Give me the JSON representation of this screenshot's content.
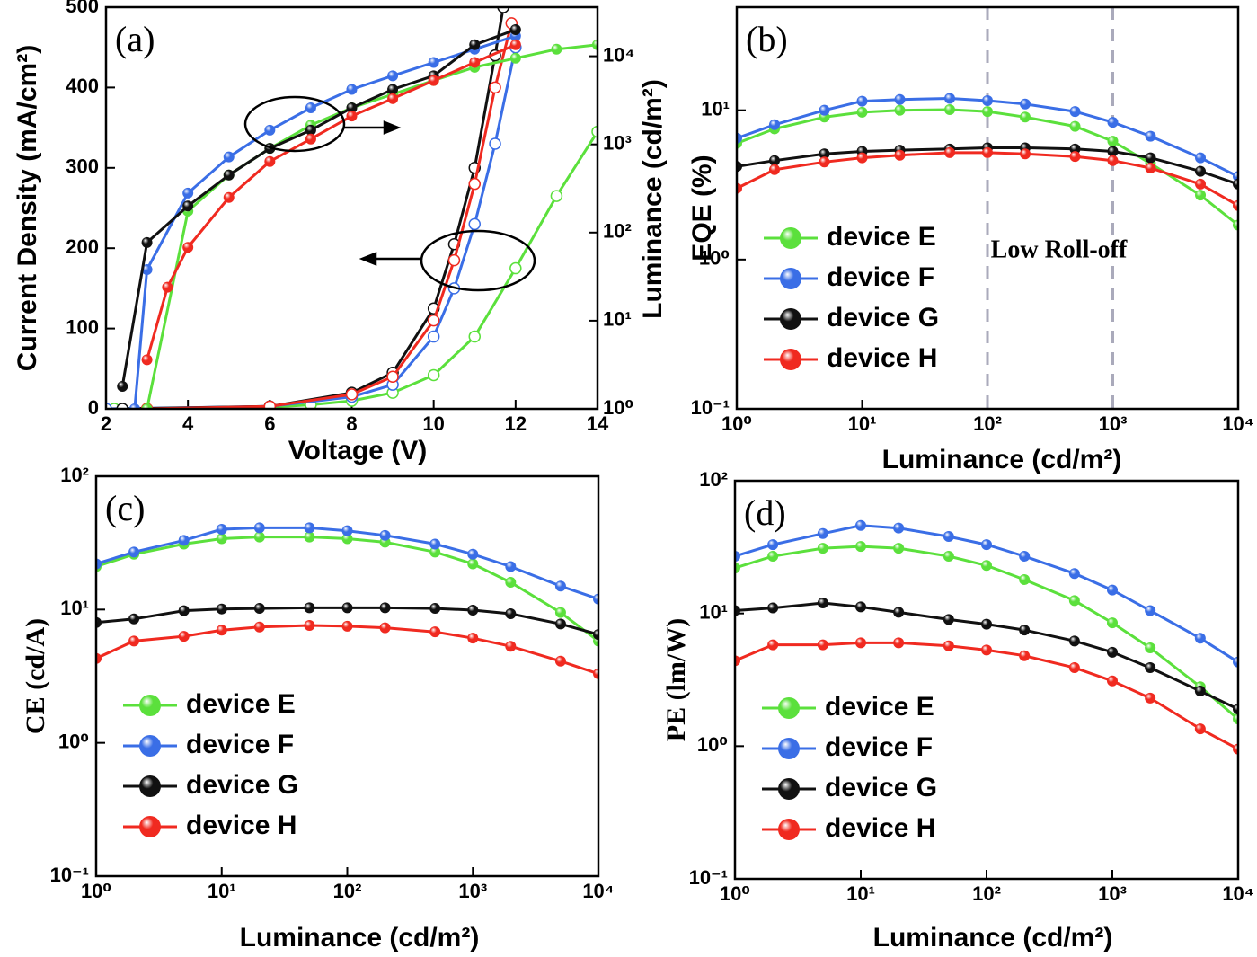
{
  "chart_data": [
    {
      "type": "line",
      "label": "(a)",
      "xlabel": "Voltage (V)",
      "ylabel": "Current Density (mA/cm²)",
      "y2label": "Luminance (cd/m²)",
      "xlim": [
        2,
        14
      ],
      "xticks": [
        2,
        4,
        6,
        8,
        10,
        12,
        14
      ],
      "ylim": [
        0,
        500
      ],
      "yticks": [
        0,
        100,
        200,
        300,
        400,
        500
      ],
      "y2lim": [
        1,
        36000
      ],
      "y2scale": "log",
      "y2ticks": [
        {
          "value": 1,
          "label": "10⁰"
        },
        {
          "value": 10,
          "label": "10¹"
        },
        {
          "value": 100,
          "label": "10²"
        },
        {
          "value": 1000,
          "label": "10³"
        },
        {
          "value": 10000,
          "label": "10⁴"
        }
      ],
      "series": [
        {
          "color": "#5be03c",
          "marker": "open",
          "x": [
            2.2,
            6,
            7,
            8,
            9,
            10,
            11,
            12,
            13,
            14
          ],
          "values": [
            0,
            2,
            5,
            10,
            20,
            42,
            90,
            175,
            265,
            345
          ]
        },
        {
          "color": "#3a6ee6",
          "marker": "open",
          "x": [
            2,
            6,
            8,
            9,
            10,
            10.5,
            11,
            11.5,
            12
          ],
          "values": [
            0,
            3,
            15,
            30,
            90,
            150,
            230,
            330,
            450
          ]
        },
        {
          "color": "#111111",
          "marker": "open",
          "x": [
            2.4,
            6,
            8,
            9,
            10,
            10.5,
            11,
            11.5,
            11.7
          ],
          "values": [
            0,
            3,
            20,
            45,
            125,
            205,
            300,
            440,
            500
          ]
        },
        {
          "color": "#f02a20",
          "marker": "open",
          "x": [
            3,
            6,
            8,
            9,
            10,
            10.5,
            11,
            11.5,
            11.9
          ],
          "values": [
            0,
            3,
            18,
            40,
            110,
            185,
            280,
            400,
            480
          ]
        },
        {
          "color": "#5be03c",
          "axis": "y2",
          "x": [
            3,
            4,
            5,
            6,
            7,
            8,
            9,
            10,
            11,
            12,
            13,
            14
          ],
          "values": [
            1,
            175,
            450,
            900,
            1650,
            2600,
            3700,
            5300,
            7500,
            9500,
            12000,
            13500
          ]
        },
        {
          "color": "#3a6ee6",
          "axis": "y2",
          "x": [
            2.7,
            3,
            4,
            5,
            6,
            7,
            8,
            9,
            10,
            11,
            12
          ],
          "values": [
            1,
            38,
            280,
            720,
            1450,
            2600,
            4200,
            6000,
            8500,
            12000,
            17000
          ]
        },
        {
          "color": "#111111",
          "axis": "y2",
          "x": [
            2.4,
            3,
            4,
            5,
            6,
            7,
            8,
            9,
            10,
            11,
            12
          ],
          "values": [
            1.8,
            77,
            200,
            450,
            900,
            1450,
            2600,
            4200,
            6000,
            13500,
            20000
          ]
        },
        {
          "color": "#f02a20",
          "axis": "y2",
          "x": [
            3,
            3.5,
            4,
            5,
            6,
            7,
            8,
            9,
            10,
            11,
            12
          ],
          "values": [
            3.6,
            24,
            68,
            250,
            640,
            1150,
            2100,
            3300,
            5300,
            8500,
            13500
          ]
        }
      ]
    },
    {
      "type": "line",
      "label": "(b)",
      "xlabel": "Luminance (cd/m²)",
      "ylabel": "EQE (%)",
      "annotations": [
        "Low Roll-off"
      ],
      "vlines": [
        100,
        1000
      ],
      "legend": "lower left",
      "xscale": "log",
      "yscale": "log",
      "xlim": [
        1,
        10000
      ],
      "ylim": [
        0.1,
        49
      ],
      "xticks": [
        {
          "value": 1,
          "label": "10⁰"
        },
        {
          "value": 10,
          "label": "10¹"
        },
        {
          "value": 100,
          "label": "10²"
        },
        {
          "value": 1000,
          "label": "10³"
        },
        {
          "value": 10000,
          "label": "10⁴"
        }
      ],
      "yticks": [
        {
          "value": 0.1,
          "label": "10⁻¹"
        },
        {
          "value": 1,
          "label": "10⁰"
        },
        {
          "value": 10,
          "label": "10¹"
        }
      ],
      "x": [
        1,
        2,
        5,
        10,
        20,
        50,
        100,
        200,
        500,
        1000,
        2000,
        5000,
        10000
      ],
      "series": [
        {
          "name": "device E",
          "color": "#5be03c",
          "values": [
            6,
            7.5,
            9,
            9.7,
            10,
            10.1,
            9.8,
            9,
            7.8,
            6.2,
            4.4,
            2.7,
            1.7
          ]
        },
        {
          "name": "device F",
          "color": "#3a6ee6",
          "values": [
            6.5,
            8,
            10,
            11.5,
            11.8,
            12,
            11.6,
            11,
            9.8,
            8.3,
            6.7,
            4.8,
            3.6
          ]
        },
        {
          "name": "device G",
          "color": "#111111",
          "values": [
            4.2,
            4.6,
            5.1,
            5.3,
            5.4,
            5.5,
            5.6,
            5.6,
            5.5,
            5.3,
            4.8,
            3.9,
            3.2
          ]
        },
        {
          "name": "device H",
          "color": "#f02a20",
          "values": [
            3,
            4,
            4.5,
            4.8,
            5,
            5.2,
            5.2,
            5.1,
            4.9,
            4.6,
            4.1,
            3.2,
            2.3
          ]
        }
      ]
    },
    {
      "type": "line",
      "label": "(c)",
      "xlabel": "Luminance (cd/m²)",
      "ylabel": "CE (cd/A)",
      "legend": "lower left",
      "xscale": "log",
      "yscale": "log",
      "xlim": [
        1,
        10000
      ],
      "ylim": [
        0.1,
        100
      ],
      "xticks": [
        {
          "value": 1,
          "label": "10⁰"
        },
        {
          "value": 10,
          "label": "10¹"
        },
        {
          "value": 100,
          "label": "10²"
        },
        {
          "value": 1000,
          "label": "10³"
        },
        {
          "value": 10000,
          "label": "10⁴"
        }
      ],
      "yticks": [
        {
          "value": 0.1,
          "label": "10⁻¹"
        },
        {
          "value": 1,
          "label": "10⁰"
        },
        {
          "value": 10,
          "label": "10¹"
        },
        {
          "value": 100,
          "label": "10²"
        }
      ],
      "x": [
        1,
        2,
        5,
        10,
        20,
        50,
        100,
        200,
        500,
        1000,
        2000,
        5000,
        10000
      ],
      "series": [
        {
          "name": "device E",
          "color": "#5be03c",
          "values": [
            21,
            26,
            31,
            34,
            35,
            35,
            34,
            32,
            27,
            22,
            16,
            9.5,
            5.8
          ]
        },
        {
          "name": "device F",
          "color": "#3a6ee6",
          "values": [
            22,
            27,
            33,
            40,
            41,
            41,
            39,
            36,
            31,
            26,
            21,
            15,
            12
          ]
        },
        {
          "name": "device G",
          "color": "#111111",
          "values": [
            8,
            8.5,
            9.8,
            10.1,
            10.2,
            10.3,
            10.3,
            10.3,
            10.2,
            9.9,
            9.3,
            7.8,
            6.5
          ]
        },
        {
          "name": "device H",
          "color": "#f02a20",
          "values": [
            4.3,
            5.8,
            6.3,
            7,
            7.4,
            7.6,
            7.5,
            7.3,
            6.8,
            6.1,
            5.3,
            4.1,
            3.3
          ]
        }
      ]
    },
    {
      "type": "line",
      "label": "(d)",
      "xlabel": "Luminance (cd/m²)",
      "ylabel": "PE (lm/W)",
      "legend": "lower left",
      "xscale": "log",
      "yscale": "log",
      "xlim": [
        1,
        10000
      ],
      "ylim": [
        0.1,
        100
      ],
      "xticks": [
        {
          "value": 1,
          "label": "10⁰"
        },
        {
          "value": 10,
          "label": "10¹"
        },
        {
          "value": 100,
          "label": "10²"
        },
        {
          "value": 1000,
          "label": "10³"
        },
        {
          "value": 10000,
          "label": "10⁴"
        }
      ],
      "yticks": [
        {
          "value": 0.1,
          "label": "10⁻¹"
        },
        {
          "value": 1,
          "label": "10⁰"
        },
        {
          "value": 10,
          "label": "10¹"
        },
        {
          "value": 100,
          "label": "10²"
        }
      ],
      "x": [
        1,
        2,
        5,
        10,
        20,
        50,
        100,
        200,
        500,
        1000,
        2000,
        5000,
        10000
      ],
      "series": [
        {
          "name": "device E",
          "color": "#5be03c",
          "values": [
            22,
            27,
            31,
            32,
            31,
            27,
            23,
            18,
            12.5,
            8.5,
            5.5,
            2.8,
            1.6
          ]
        },
        {
          "name": "device F",
          "color": "#3a6ee6",
          "values": [
            27,
            33,
            40,
            46,
            44,
            38,
            33,
            27,
            20,
            15,
            10.5,
            6.5,
            4.3
          ]
        },
        {
          "name": "device G",
          "color": "#111111",
          "values": [
            10.5,
            11,
            12,
            11.2,
            10.2,
            9,
            8.3,
            7.5,
            6.2,
            5.1,
            3.9,
            2.6,
            1.9
          ]
        },
        {
          "name": "device H",
          "color": "#f02a20",
          "values": [
            4.4,
            5.8,
            5.8,
            6,
            6,
            5.7,
            5.3,
            4.8,
            3.9,
            3.1,
            2.3,
            1.35,
            0.95
          ]
        }
      ]
    }
  ]
}
